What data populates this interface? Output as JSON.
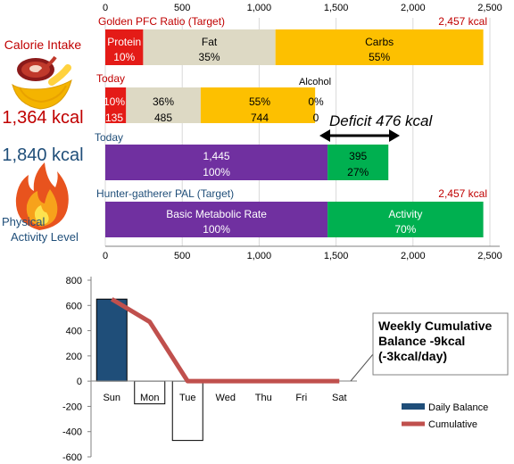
{
  "colors": {
    "protein": "#e41b17",
    "fat": "#ddd9c4",
    "carbs": "#fdc000",
    "bmr": "#7030a0",
    "activity": "#00b050",
    "red_text": "#c00000",
    "blue_text": "#1f4e79",
    "daily_bar": "#1f4e79",
    "cumulative_line": "#c0504d"
  },
  "left_panel": {
    "intake_label": "Calorie Intake",
    "intake_value": "1,364 kcal",
    "expenditure_value": "1,840 kcal",
    "pal_label_1": "Physical",
    "pal_label_2": "Activity Level",
    "food_icon": "meat-and-banana-icon",
    "fire_icon": "flame-icon"
  },
  "chart_data": [
    {
      "type": "bar",
      "orientation": "horizontal-stacked",
      "xlim": [
        0,
        2500
      ],
      "xticks": [
        "0",
        "500",
        "1,000",
        "1,500",
        "2,000",
        "2,500"
      ],
      "rows": [
        {
          "label": "Golden PFC Ratio (Target)",
          "total_label": "2,457 kcal",
          "segments": [
            {
              "name": "Protein",
              "kcal": 246,
              "pct": "10%",
              "color_key": "protein"
            },
            {
              "name": "Fat",
              "kcal": 860,
              "pct": "35%",
              "color_key": "fat"
            },
            {
              "name": "Carbs",
              "kcal": 1351,
              "pct": "55%",
              "color_key": "carbs"
            }
          ]
        },
        {
          "label": "Today",
          "segments": [
            {
              "name": "",
              "kcal": 135,
              "pct": "10%",
              "value_label": "135",
              "color_key": "protein"
            },
            {
              "name": "",
              "kcal": 485,
              "pct": "36%",
              "value_label": "485",
              "color_key": "fat"
            },
            {
              "name": "",
              "kcal": 744,
              "pct": "55%",
              "value_label": "744",
              "color_key": "carbs"
            },
            {
              "name": "Alcohol",
              "kcal": 0,
              "pct": "0%",
              "value_label": "0",
              "color_key": "carbs"
            }
          ]
        },
        {
          "label": "Today",
          "segments": [
            {
              "name": "",
              "kcal": 1445,
              "value_label": "1,445",
              "pct": "100%",
              "color_key": "bmr"
            },
            {
              "name": "",
              "kcal": 395,
              "value_label": "395",
              "pct": "27%",
              "color_key": "activity"
            }
          ]
        },
        {
          "label": "Hunter-gatherer  PAL (Target)",
          "total_label": "2,457 kcal",
          "segments": [
            {
              "name": "Basic Metabolic Rate",
              "kcal": 1445,
              "pct": "100%",
              "color_key": "bmr"
            },
            {
              "name": "Activity",
              "kcal": 1012,
              "pct": "70%",
              "color_key": "activity"
            }
          ]
        }
      ],
      "annotation": {
        "text": "Deficit 476 kcal",
        "from_kcal": 1364,
        "to_kcal": 1840
      }
    },
    {
      "type": "bar",
      "ylim": [
        -600,
        800
      ],
      "yticks": [
        800,
        600,
        400,
        200,
        0,
        -200,
        -400,
        -600
      ],
      "categories": [
        "Sun",
        "Mon",
        "Tue",
        "Wed",
        "Thu",
        "Fri",
        "Sat"
      ],
      "series": [
        {
          "name": "Daily Balance",
          "kind": "bar",
          "values": [
            650,
            -180,
            -470,
            0,
            0,
            0,
            0
          ]
        },
        {
          "name": "Cumulative",
          "kind": "line",
          "values": [
            650,
            470,
            0,
            0,
            0,
            0,
            0
          ]
        }
      ],
      "callout": "Weekly Cumulative Balance -9kcal (-3kcal/day)",
      "legend_position": "bottom-right"
    }
  ]
}
